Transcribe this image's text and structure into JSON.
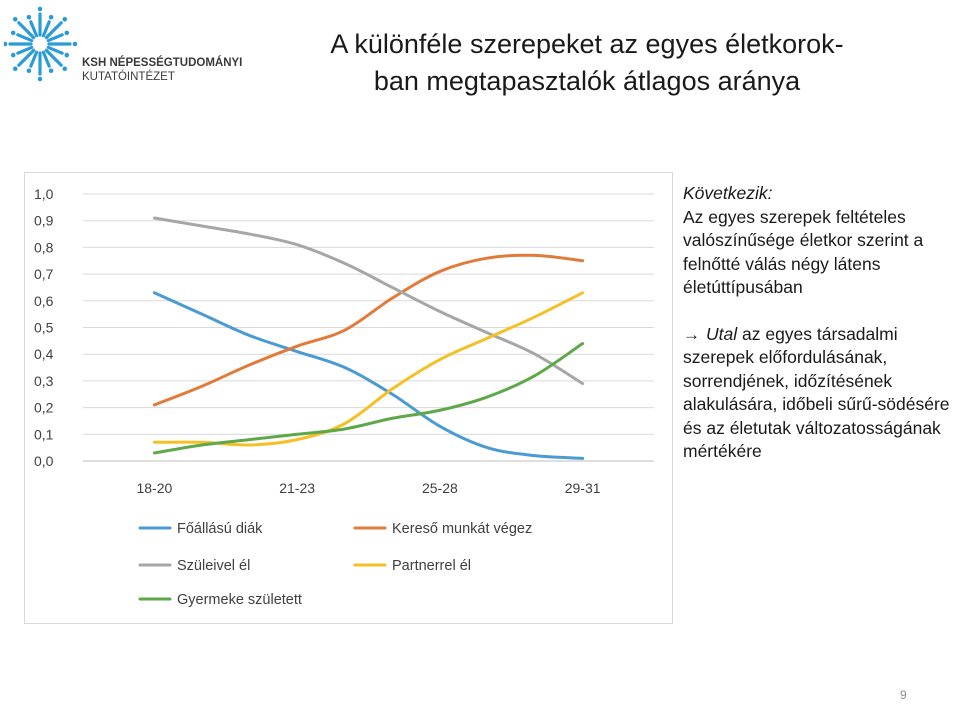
{
  "logo": {
    "line1": "KSH NÉPESSÉGTUDOMÁNYI",
    "line2": "KUTATÓINTÉZET",
    "color": "#2b9bd6"
  },
  "title": {
    "line1": "A különféle szerepeket az egyes életkorok-",
    "line2": "ban megtapasztalók átlagos aránya"
  },
  "chart_data": {
    "type": "line",
    "categories": [
      "18-20",
      "21-23",
      "25-28",
      "29-31"
    ],
    "y_ticks": [
      "0,0",
      "0,1",
      "0,2",
      "0,3",
      "0,4",
      "0,5",
      "0,6",
      "0,7",
      "0,8",
      "0,9",
      "1,0"
    ],
    "ylim": [
      0,
      1
    ],
    "grid": true,
    "legend_position": "bottom",
    "series": [
      {
        "name": "Főállású diák",
        "color": "#4a9ad4",
        "values": [
          0.63,
          0.35,
          0.05,
          0.01
        ],
        "curve": [
          0.63,
          0.55,
          0.47,
          0.41,
          0.35,
          0.25,
          0.13,
          0.05,
          0.02,
          0.01
        ]
      },
      {
        "name": "Kereső munkát végez",
        "color": "#e07b39",
        "values": [
          0.21,
          0.47,
          0.76,
          0.75
        ],
        "curve": [
          0.21,
          0.28,
          0.36,
          0.43,
          0.49,
          0.61,
          0.71,
          0.76,
          0.77,
          0.75
        ]
      },
      {
        "name": "Szüleivel él",
        "color": "#a6a6a6",
        "values": [
          0.91,
          0.74,
          0.48,
          0.29
        ],
        "curve": [
          0.91,
          0.88,
          0.85,
          0.81,
          0.74,
          0.65,
          0.56,
          0.48,
          0.4,
          0.29
        ]
      },
      {
        "name": "Partnerrel él",
        "color": "#f5c026",
        "values": [
          0.07,
          0.14,
          0.46,
          0.63
        ],
        "curve": [
          0.07,
          0.07,
          0.06,
          0.08,
          0.14,
          0.27,
          0.38,
          0.46,
          0.54,
          0.63
        ]
      },
      {
        "name": "Gyermeke született",
        "color": "#5fa84a",
        "values": [
          0.03,
          0.12,
          0.24,
          0.44
        ],
        "curve": [
          0.03,
          0.06,
          0.08,
          0.1,
          0.12,
          0.16,
          0.19,
          0.24,
          0.32,
          0.44
        ]
      }
    ]
  },
  "side": {
    "heading": "Következik:",
    "body": "Az egyes szerepek feltételes valószínűsége életkor szerint a felnőtté válás négy látens életúttípusában",
    "arrow": "→",
    "utal": "Utal",
    "rest": " az egyes társadalmi szerepek előfordulásának, sorrendjének, időzítésének alakulására, időbeli sűrű-södésére és az életutak változatosságának mértékére"
  },
  "page_number": "9"
}
